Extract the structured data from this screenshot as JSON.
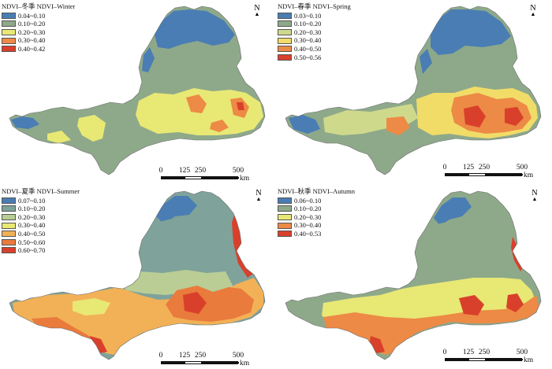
{
  "panels": [
    {
      "id": "winter",
      "title": "NDVI–冬季 NDVI–Winter",
      "legend": [
        {
          "label": "0.04~0.10",
          "color": "#4a7db4"
        },
        {
          "label": "0.10~0.20",
          "color": "#8ea98a"
        },
        {
          "label": "0.20~0.30",
          "color": "#e8e875"
        },
        {
          "label": "0.30~0.40",
          "color": "#ed8a45"
        },
        {
          "label": "0.40~0.42",
          "color": "#d9402b"
        }
      ]
    },
    {
      "id": "spring",
      "title": "NDVI–春季 NDVI–Spring",
      "legend": [
        {
          "label": "0.03~0.10",
          "color": "#4a7db4"
        },
        {
          "label": "0.10~0.20",
          "color": "#8ea98a"
        },
        {
          "label": "0.20~0.30",
          "color": "#cfd98c"
        },
        {
          "label": "0.30~0.40",
          "color": "#f1dc68"
        },
        {
          "label": "0.40~0.50",
          "color": "#ed8a45"
        },
        {
          "label": "0.50~0.56",
          "color": "#d9402b"
        }
      ]
    },
    {
      "id": "summer",
      "title": "NDVI–夏季 NDVI–Summer",
      "legend": [
        {
          "label": "0.07~0.10",
          "color": "#4a7db4"
        },
        {
          "label": "0.10~0.20",
          "color": "#7fa39a"
        },
        {
          "label": "0.20~0.30",
          "color": "#b9cd95"
        },
        {
          "label": "0.30~0.40",
          "color": "#e8e875"
        },
        {
          "label": "0.40~0.50",
          "color": "#f2b156"
        },
        {
          "label": "0.50~0.60",
          "color": "#e97b3c"
        },
        {
          "label": "0.60~0.70",
          "color": "#d9402b"
        }
      ]
    },
    {
      "id": "autumn",
      "title": "NDVI–秋季 NDVI–Autumn",
      "legend": [
        {
          "label": "0.06~0.10",
          "color": "#4a7db4"
        },
        {
          "label": "0.10~0.20",
          "color": "#8ea98a"
        },
        {
          "label": "0.20~0.30",
          "color": "#e8e875"
        },
        {
          "label": "0.30~0.40",
          "color": "#ed8a45"
        },
        {
          "label": "0.40~0.53",
          "color": "#d9402b"
        }
      ]
    }
  ],
  "north_label": "N",
  "scale": {
    "ticks": [
      "0",
      "125",
      "250",
      "500"
    ],
    "unit": "km"
  }
}
